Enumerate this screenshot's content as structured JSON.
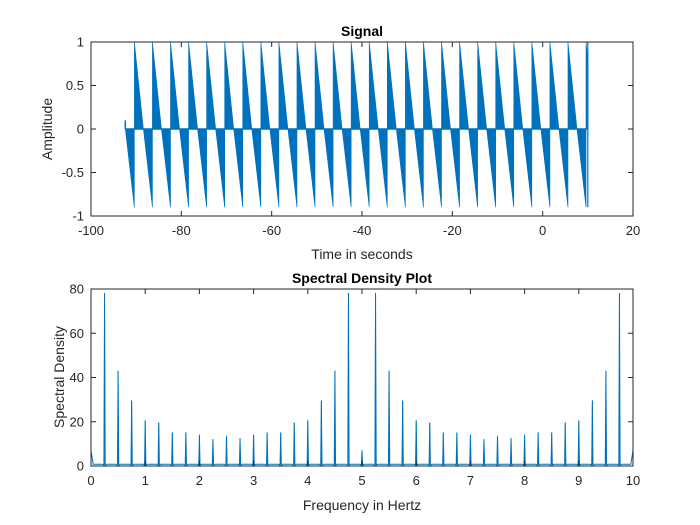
{
  "colors": {
    "series": "#0072BD",
    "axes": "#262626",
    "background": "#ffffff"
  },
  "chart_data": [
    {
      "type": "area",
      "title": "Signal",
      "xlabel": "Time in seconds",
      "ylabel": "Amplitude",
      "xlim": [
        -100,
        20
      ],
      "ylim": [
        -1,
        1
      ],
      "xticks": [
        -100,
        -80,
        -60,
        -40,
        -20,
        0,
        20
      ],
      "xtick_labels": [
        "-100",
        "-80",
        "-60",
        "-40",
        "-20",
        "0",
        "20"
      ],
      "yticks": [
        -1,
        -0.5,
        0,
        0.5,
        1
      ],
      "ytick_labels": [
        "-1",
        "-0.5",
        "0",
        "0.5",
        "1"
      ],
      "series": [
        {
          "name": "signal",
          "description": "periodic sawtooth-modulated signal",
          "t_start": -92.4,
          "t_end": 10.0,
          "period": 4.0,
          "pulse_starts": [
            -90.4,
            -86.4,
            -82.4,
            -78.4,
            -74.4,
            -70.4,
            -66.4,
            -62.4,
            -58.4,
            -54.4,
            -50.4,
            -46.4,
            -42.4,
            -38.4,
            -34.4,
            -30.4,
            -26.4,
            -22.4,
            -18.4,
            -14.4,
            -10.4,
            -6.4,
            -2.4,
            1.6,
            5.6,
            9.6
          ],
          "peak": 1.0,
          "trough": -0.9,
          "initial_value": 0.1
        }
      ]
    },
    {
      "type": "line",
      "title": "Spectral Density Plot",
      "xlabel": "Frequency in Hertz",
      "ylabel": "Spectral Density",
      "xlim": [
        0,
        10
      ],
      "ylim": [
        0,
        80
      ],
      "xticks": [
        0,
        1,
        2,
        3,
        4,
        5,
        6,
        7,
        8,
        9,
        10
      ],
      "xtick_labels": [
        "0",
        "1",
        "2",
        "3",
        "4",
        "5",
        "6",
        "7",
        "8",
        "9",
        "10"
      ],
      "yticks": [
        0,
        20,
        40,
        60,
        80
      ],
      "ytick_labels": [
        "0",
        "20",
        "40",
        "60",
        "80"
      ],
      "series": [
        {
          "name": "spectral density",
          "x": [
            0.25,
            0.5,
            0.75,
            1.0,
            1.25,
            1.5,
            1.75,
            2.0,
            2.25,
            2.5,
            2.75,
            3.0,
            3.25,
            3.5,
            3.75,
            4.0,
            4.25,
            4.5,
            4.75,
            5.0,
            5.25,
            5.5,
            5.75,
            6.0,
            6.25,
            6.5,
            6.75,
            7.0,
            7.25,
            7.5,
            7.75,
            8.0,
            8.25,
            8.5,
            8.75,
            9.0,
            9.25,
            9.5,
            9.75
          ],
          "y": [
            78,
            43,
            29.5,
            20.5,
            19.5,
            15,
            15,
            14,
            12,
            13.5,
            12.5,
            14,
            15,
            15,
            19.5,
            20.5,
            29.5,
            43,
            78,
            7,
            78,
            43,
            29.5,
            20.5,
            19.5,
            15,
            15,
            14,
            12,
            13.5,
            12.5,
            14,
            15,
            15,
            19.5,
            20.5,
            29.5,
            43,
            78
          ],
          "baseline": 0.8,
          "edge_values": {
            "at_0": 7,
            "at_10": 7
          }
        }
      ]
    }
  ]
}
